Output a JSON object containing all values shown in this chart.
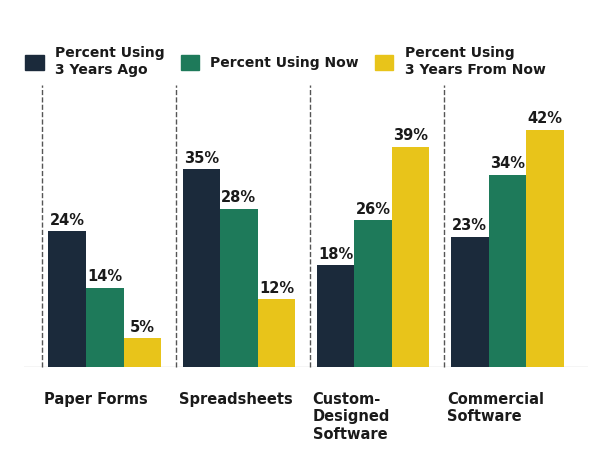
{
  "categories": [
    "Paper Forms",
    "Spreadsheets",
    "Custom-\nDesigned\nSoftware",
    "Commercial\nSoftware"
  ],
  "series": {
    "3 Years Ago": [
      24,
      35,
      18,
      23
    ],
    "Now": [
      14,
      28,
      26,
      34
    ],
    "3 Years From Now": [
      5,
      12,
      39,
      42
    ]
  },
  "colors": {
    "3 Years Ago": "#1b2a3b",
    "Now": "#1e7a5a",
    "3 Years From Now": "#e8c41a"
  },
  "legend_labels": [
    "Percent Using\n3 Years Ago",
    "Percent Using Now",
    "Percent Using\n3 Years From Now"
  ],
  "bar_width": 0.28,
  "ylim": [
    0,
    50
  ],
  "background_color": "#ffffff",
  "label_fontsize": 10.5,
  "tick_fontsize": 10.5,
  "legend_fontsize": 10
}
